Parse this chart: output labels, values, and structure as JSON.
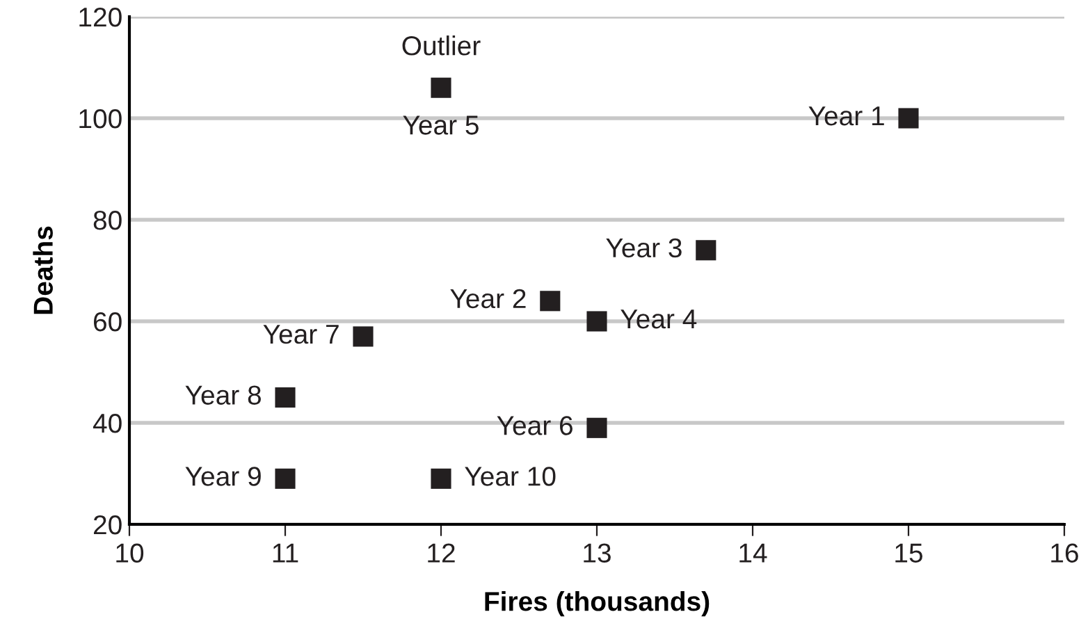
{
  "chart_data": {
    "type": "scatter",
    "xlabel": "Fires (thousands)",
    "ylabel": "Deaths",
    "x": [
      15,
      12,
      13.7,
      12.7,
      13,
      11.5,
      11,
      13,
      11,
      12
    ],
    "values": [
      100,
      106,
      74,
      64,
      60,
      57,
      45,
      39,
      29,
      29
    ],
    "color": "#231f20",
    "marker": "square",
    "grid": "y",
    "xlim": [
      10,
      16
    ],
    "xticks": [
      10,
      11,
      12,
      13,
      14,
      15,
      16
    ],
    "ylim": [
      20,
      120
    ],
    "yticks": [
      20,
      40,
      60,
      80,
      100,
      120
    ],
    "annotations": [
      {
        "text": "Year 1",
        "x": 15,
        "y": 100
      },
      {
        "text": "Outlier",
        "x": 12,
        "y": 106
      },
      {
        "text": "Year 5",
        "x": 12,
        "y": 106
      },
      {
        "text": "Year 3",
        "x": 13.7,
        "y": 74
      },
      {
        "text": "Year 2",
        "x": 12.7,
        "y": 64
      },
      {
        "text": "Year 4",
        "x": 13,
        "y": 60
      },
      {
        "text": "Year 7",
        "x": 11.5,
        "y": 57
      },
      {
        "text": "Year 8",
        "x": 11,
        "y": 45
      },
      {
        "text": "Year 6",
        "x": 13,
        "y": 39
      },
      {
        "text": "Year 9",
        "x": 11,
        "y": 29
      },
      {
        "text": "Year 10",
        "x": 12,
        "y": 29
      }
    ]
  }
}
